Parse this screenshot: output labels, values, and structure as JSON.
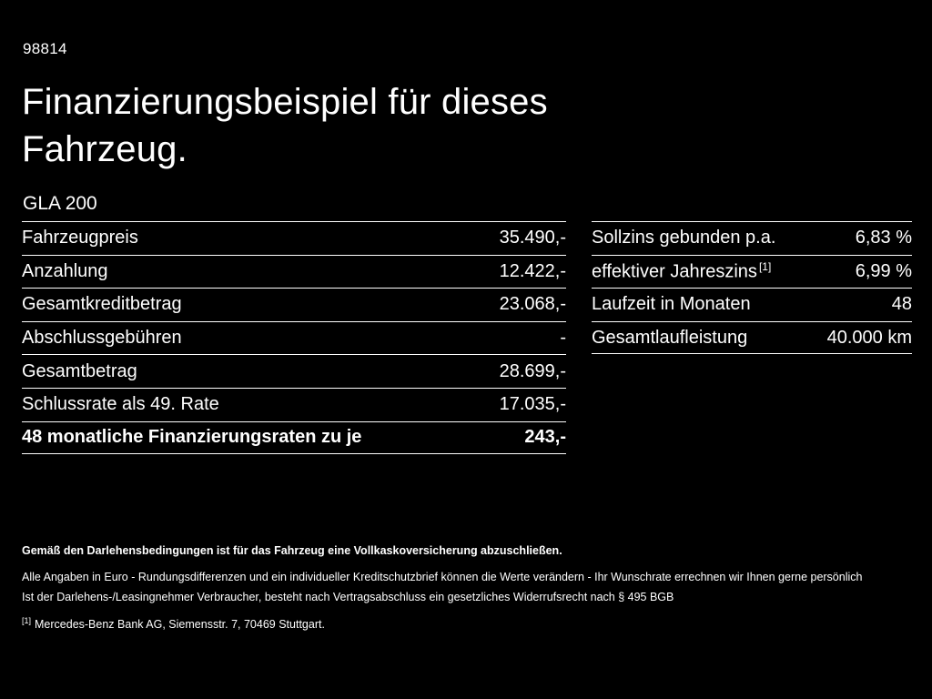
{
  "page": {
    "id": "98814",
    "title_line1": "Finanzierungsbeispiel für dieses",
    "title_line2": "Fahrzeug.",
    "model": "GLA 200"
  },
  "colors": {
    "background": "#000000",
    "text": "#ffffff",
    "divider": "#ffffff"
  },
  "left_table": {
    "rows": [
      {
        "label": "Fahrzeugpreis",
        "value": "35.490,-"
      },
      {
        "label": "Anzahlung",
        "value": "12.422,-"
      },
      {
        "label": "Gesamtkreditbetrag",
        "value": "23.068,-"
      },
      {
        "label": "Abschlussgebühren",
        "value": "-"
      },
      {
        "label": "Gesamtbetrag",
        "value": "28.699,-"
      },
      {
        "label": "Schlussrate als 49. Rate",
        "value": "17.035,-"
      },
      {
        "label": "48 monatliche Finanzierungsraten zu je",
        "value": "243,-"
      }
    ]
  },
  "right_table": {
    "rows": [
      {
        "label": "Sollzins gebunden p.a.",
        "marker": "",
        "value": "6,83 %"
      },
      {
        "label": "effektiver Jahreszins",
        "marker": "[1]",
        "value": "6,99 %"
      },
      {
        "label": "Laufzeit in Monaten",
        "marker": "",
        "value": "48"
      },
      {
        "label": "Gesamtlaufleistung",
        "marker": "",
        "value": "40.000 km"
      }
    ]
  },
  "footnotes": {
    "bold_note": "Gemäß den Darlehensbedingungen ist für das Fahrzeug eine Vollkaskoversicherung abzuschließen.",
    "note1": "Alle Angaben in Euro - Rundungsdifferenzen und ein individueller Kreditschutzbrief können die Werte verändern - Ihr Wunschrate errechnen wir Ihnen gerne persönlich",
    "note2": "Ist der Darlehens-/Leasingnehmer Verbraucher, besteht nach Vertragsabschluss ein gesetzliches Widerrufsrecht nach § 495 BGB",
    "ref_marker": "[1]",
    "ref_text": "Mercedes-Benz Bank AG, Siemensstr. 7, 70469 Stuttgart."
  }
}
